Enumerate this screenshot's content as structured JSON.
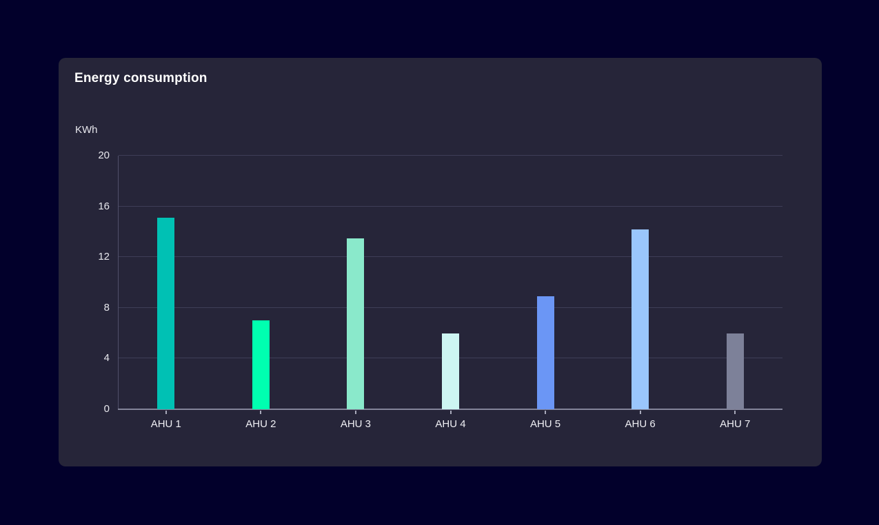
{
  "card": {
    "title": "Energy consumption",
    "unit_label": "KWh"
  },
  "chart_data": {
    "type": "bar",
    "title": "Energy consumption",
    "ylabel": "KWh",
    "xlabel": "",
    "categories": [
      "AHU 1",
      "AHU 2",
      "AHU 3",
      "AHU 4",
      "AHU 5",
      "AHU 6",
      "AHU 7"
    ],
    "values": [
      15.1,
      7,
      13.5,
      6,
      8.9,
      14.2,
      6
    ],
    "bar_colors": [
      "#00C1B4",
      "#00FFB0",
      "#8AE9CB",
      "#CDF5F2",
      "#6B96F5",
      "#9AC6FC",
      "#7D8199"
    ],
    "ylim": [
      0,
      20
    ],
    "yticks": [
      0,
      4,
      8,
      12,
      16,
      20
    ],
    "grid": true,
    "legend": "none"
  },
  "colors": {
    "page_background": "#02002B",
    "card_background": "#262539",
    "gridline": "#3E3E58",
    "axis_baseline": "#84859A",
    "axis_vertical": "#50506A",
    "tick_mark": "#A9AABB",
    "title_text": "#FFFFFF",
    "tick_text": "#E7E7ED",
    "category_text": "#EFEFF4"
  }
}
